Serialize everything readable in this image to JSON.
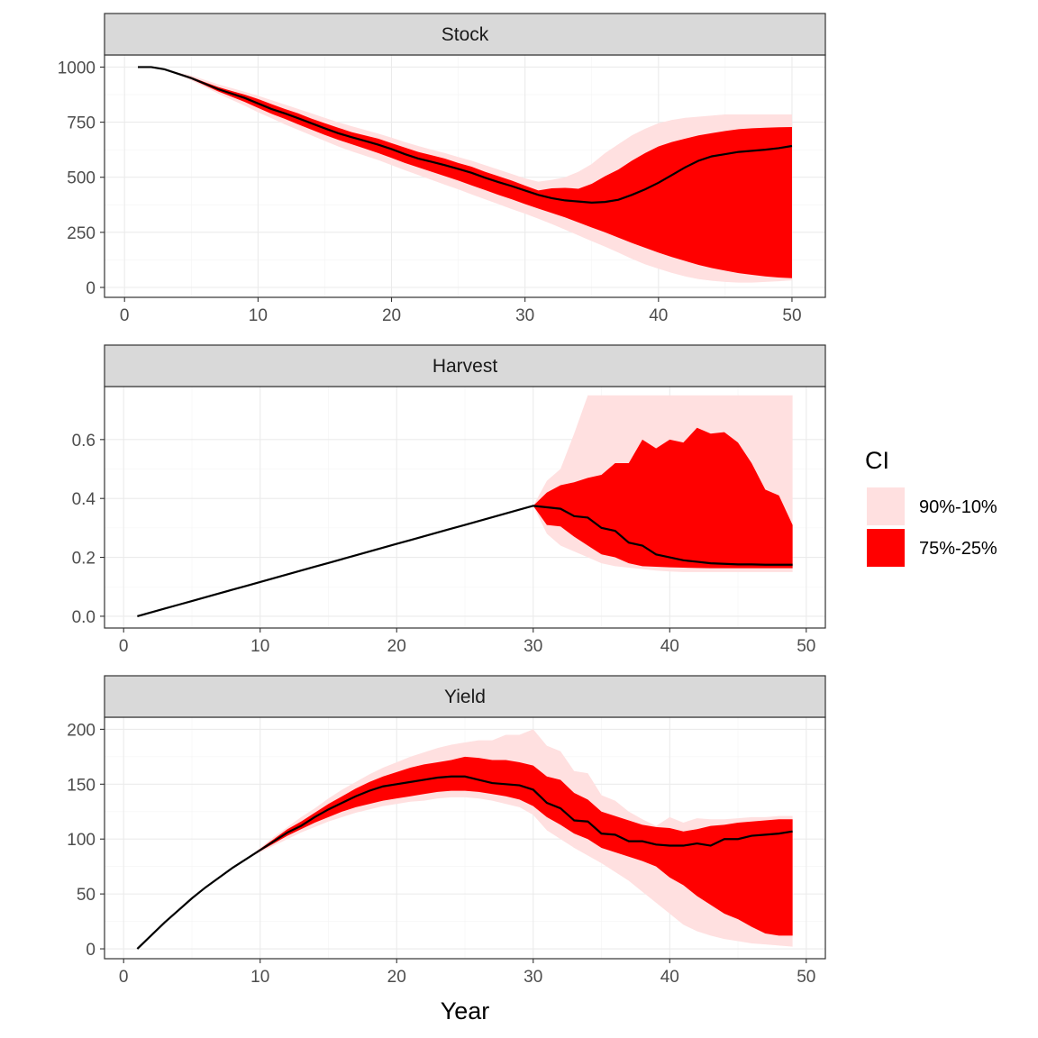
{
  "chart_data": {
    "type": "area",
    "xlabel": "Year",
    "legend": {
      "title": "CI",
      "placement": "right",
      "entries": [
        {
          "label": "90%-10%",
          "color": "#ffe0e0"
        },
        {
          "label": "75%-25%",
          "color": "#ff0000"
        }
      ]
    },
    "median_color": "#000000",
    "panels": [
      {
        "title": "Stock",
        "xlim": [
          -1.5,
          52.5
        ],
        "ylim": [
          -45,
          1055
        ],
        "x_ticks": [
          0,
          10,
          20,
          30,
          40,
          50
        ],
        "y_ticks": [
          0,
          250,
          500,
          750,
          1000
        ],
        "x": [
          1,
          2,
          3,
          4,
          5,
          6,
          7,
          8,
          9,
          10,
          11,
          12,
          13,
          14,
          15,
          16,
          17,
          18,
          19,
          20,
          21,
          22,
          23,
          24,
          25,
          26,
          27,
          28,
          29,
          30,
          31,
          32,
          33,
          34,
          35,
          36,
          37,
          38,
          39,
          40,
          41,
          42,
          43,
          44,
          45,
          46,
          47,
          48,
          49,
          50
        ],
        "median": [
          1000,
          1000,
          990,
          970,
          950,
          925,
          900,
          880,
          860,
          835,
          810,
          790,
          768,
          745,
          722,
          700,
          682,
          665,
          648,
          628,
          605,
          585,
          570,
          555,
          538,
          520,
          498,
          478,
          460,
          440,
          420,
          405,
          395,
          390,
          385,
          388,
          398,
          420,
          445,
          475,
          510,
          545,
          575,
          595,
          605,
          615,
          620,
          625,
          632,
          642
        ],
        "p25": [
          1000,
          1000,
          990,
          968,
          945,
          918,
          890,
          866,
          842,
          815,
          788,
          765,
          740,
          716,
          692,
          670,
          650,
          630,
          610,
          588,
          565,
          545,
          525,
          505,
          485,
          463,
          442,
          420,
          400,
          378,
          358,
          338,
          318,
          295,
          272,
          250,
          226,
          202,
          180,
          158,
          138,
          120,
          102,
          88,
          76,
          65,
          57,
          50,
          45,
          42
        ],
        "p75": [
          1000,
          1000,
          990,
          972,
          955,
          932,
          910,
          892,
          875,
          855,
          832,
          810,
          790,
          766,
          745,
          725,
          705,
          690,
          675,
          655,
          635,
          615,
          600,
          585,
          565,
          548,
          525,
          505,
          485,
          462,
          440,
          450,
          452,
          448,
          470,
          505,
          535,
          575,
          610,
          640,
          660,
          675,
          690,
          700,
          710,
          718,
          722,
          725,
          727,
          728
        ],
        "p10": [
          1000,
          1000,
          990,
          965,
          940,
          910,
          880,
          852,
          825,
          795,
          768,
          740,
          715,
          690,
          665,
          640,
          618,
          598,
          578,
          555,
          532,
          510,
          488,
          466,
          445,
          422,
          400,
          378,
          356,
          335,
          312,
          288,
          262,
          236,
          210,
          185,
          158,
          130,
          105,
          85,
          66,
          50,
          38,
          30,
          25,
          22,
          22,
          25,
          28,
          32
        ],
        "p90": [
          1000,
          1000,
          990,
          975,
          962,
          942,
          922,
          905,
          888,
          870,
          850,
          830,
          810,
          790,
          770,
          750,
          732,
          715,
          698,
          680,
          660,
          642,
          625,
          610,
          592,
          575,
          555,
          535,
          515,
          495,
          480,
          488,
          500,
          525,
          560,
          610,
          650,
          690,
          720,
          745,
          760,
          770,
          775,
          780,
          785,
          785,
          785,
          785,
          785,
          785
        ]
      },
      {
        "title": "Harvest",
        "xlim": [
          -1.4,
          51.4
        ],
        "ylim": [
          -0.04,
          0.78
        ],
        "x_ticks": [
          0,
          10,
          20,
          30,
          40,
          50
        ],
        "y_ticks": [
          0.0,
          0.2,
          0.4,
          0.6
        ],
        "y_tick_labels": [
          "0.0",
          "0.2",
          "0.4",
          "0.6"
        ],
        "x": [
          1,
          2,
          3,
          4,
          5,
          6,
          7,
          8,
          9,
          10,
          11,
          12,
          13,
          14,
          15,
          16,
          17,
          18,
          19,
          20,
          21,
          22,
          23,
          24,
          25,
          26,
          27,
          28,
          29,
          30,
          31,
          32,
          33,
          34,
          35,
          36,
          37,
          38,
          39,
          40,
          41,
          42,
          43,
          44,
          45,
          46,
          47,
          48,
          49
        ],
        "median": [
          0.0,
          0.0129,
          0.0259,
          0.0388,
          0.0517,
          0.0647,
          0.0776,
          0.0905,
          0.1034,
          0.1164,
          0.1293,
          0.1422,
          0.1552,
          0.1681,
          0.181,
          0.194,
          0.2069,
          0.2198,
          0.2328,
          0.2457,
          0.2586,
          0.2716,
          0.2845,
          0.2974,
          0.3103,
          0.3233,
          0.3362,
          0.3491,
          0.3621,
          0.375,
          0.37,
          0.365,
          0.34,
          0.335,
          0.3,
          0.29,
          0.25,
          0.24,
          0.21,
          0.2,
          0.19,
          0.185,
          0.18,
          0.178,
          0.176,
          0.176,
          0.175,
          0.175,
          0.175
        ],
        "p25": [
          0.0,
          0.0129,
          0.0259,
          0.0388,
          0.0517,
          0.0647,
          0.0776,
          0.0905,
          0.1034,
          0.1164,
          0.1293,
          0.1422,
          0.1552,
          0.1681,
          0.181,
          0.194,
          0.2069,
          0.2198,
          0.2328,
          0.2457,
          0.2586,
          0.2716,
          0.2845,
          0.2974,
          0.3103,
          0.3233,
          0.3362,
          0.3491,
          0.3621,
          0.375,
          0.31,
          0.305,
          0.27,
          0.24,
          0.21,
          0.2,
          0.18,
          0.17,
          0.168,
          0.166,
          0.165,
          0.164,
          0.163,
          0.163,
          0.163,
          0.163,
          0.163,
          0.163,
          0.163
        ],
        "p75": [
          0.0,
          0.0129,
          0.0259,
          0.0388,
          0.0517,
          0.0647,
          0.0776,
          0.0905,
          0.1034,
          0.1164,
          0.1293,
          0.1422,
          0.1552,
          0.1681,
          0.181,
          0.194,
          0.2069,
          0.2198,
          0.2328,
          0.2457,
          0.2586,
          0.2716,
          0.2845,
          0.2974,
          0.3103,
          0.3233,
          0.3362,
          0.3491,
          0.3621,
          0.375,
          0.42,
          0.445,
          0.455,
          0.47,
          0.48,
          0.52,
          0.52,
          0.6,
          0.57,
          0.6,
          0.59,
          0.64,
          0.62,
          0.625,
          0.59,
          0.52,
          0.43,
          0.41,
          0.31
        ],
        "p10": [
          0.0,
          0.0129,
          0.0259,
          0.0388,
          0.0517,
          0.0647,
          0.0776,
          0.0905,
          0.1034,
          0.1164,
          0.1293,
          0.1422,
          0.1552,
          0.1681,
          0.181,
          0.194,
          0.2069,
          0.2198,
          0.2328,
          0.2457,
          0.2586,
          0.2716,
          0.2845,
          0.2974,
          0.3103,
          0.3233,
          0.3362,
          0.3491,
          0.3621,
          0.375,
          0.28,
          0.24,
          0.22,
          0.2,
          0.18,
          0.17,
          0.165,
          0.16,
          0.155,
          0.152,
          0.15,
          0.15,
          0.15,
          0.15,
          0.15,
          0.15,
          0.15,
          0.15,
          0.15
        ],
        "p90": [
          0.0,
          0.0129,
          0.0259,
          0.0388,
          0.0517,
          0.0647,
          0.0776,
          0.0905,
          0.1034,
          0.1164,
          0.1293,
          0.1422,
          0.1552,
          0.1681,
          0.181,
          0.194,
          0.2069,
          0.2198,
          0.2328,
          0.2457,
          0.2586,
          0.2716,
          0.2845,
          0.2974,
          0.3103,
          0.3233,
          0.3362,
          0.3491,
          0.3621,
          0.375,
          0.46,
          0.5,
          0.62,
          0.75,
          0.75,
          0.75,
          0.75,
          0.75,
          0.75,
          0.75,
          0.75,
          0.75,
          0.75,
          0.75,
          0.75,
          0.75,
          0.75,
          0.75,
          0.75
        ]
      },
      {
        "title": "Yield",
        "xlim": [
          -1.4,
          51.4
        ],
        "ylim": [
          -9,
          211
        ],
        "x_ticks": [
          0,
          10,
          20,
          30,
          40,
          50
        ],
        "y_ticks": [
          0,
          50,
          100,
          150,
          200
        ],
        "x": [
          1,
          2,
          3,
          4,
          5,
          6,
          7,
          8,
          9,
          10,
          11,
          12,
          13,
          14,
          15,
          16,
          17,
          18,
          19,
          20,
          21,
          22,
          23,
          24,
          25,
          26,
          27,
          28,
          29,
          30,
          31,
          32,
          33,
          34,
          35,
          36,
          37,
          38,
          39,
          40,
          41,
          42,
          43,
          44,
          45,
          46,
          47,
          48,
          49
        ],
        "median": [
          0,
          12,
          24,
          35,
          46,
          56,
          65,
          74,
          82,
          90,
          98,
          106,
          112,
          120,
          127,
          133,
          139,
          144,
          148,
          150,
          152,
          154,
          156,
          157,
          157,
          154,
          151,
          150,
          149,
          145,
          133,
          128,
          117,
          116,
          105,
          104,
          98,
          98,
          95,
          94,
          94,
          96,
          94,
          100,
          100,
          103,
          104,
          105,
          107
        ],
        "p25": [
          0,
          12,
          24,
          35,
          46,
          56,
          65,
          74,
          82,
          89,
          96,
          103,
          109,
          115,
          120,
          125,
          129,
          132,
          135,
          137,
          139,
          141,
          143,
          144,
          144,
          143,
          141,
          139,
          136,
          130,
          120,
          113,
          105,
          100,
          92,
          88,
          84,
          80,
          75,
          65,
          58,
          48,
          40,
          32,
          27,
          20,
          14,
          12,
          12
        ],
        "p75": [
          0,
          12,
          24,
          35,
          46,
          56,
          65,
          74,
          82,
          91,
          100,
          109,
          116,
          124,
          132,
          139,
          146,
          152,
          157,
          161,
          165,
          168,
          170,
          172,
          175,
          174,
          172,
          172,
          170,
          167,
          157,
          154,
          142,
          136,
          125,
          121,
          117,
          113,
          111,
          110,
          107,
          109,
          112,
          113,
          115,
          116,
          117,
          118,
          118
        ],
        "p10": [
          0,
          12,
          24,
          35,
          46,
          56,
          65,
          74,
          82,
          88,
          94,
          100,
          106,
          111,
          116,
          120,
          124,
          127,
          130,
          132,
          134,
          135,
          137,
          138,
          138,
          137,
          135,
          132,
          129,
          122,
          108,
          100,
          92,
          85,
          78,
          70,
          62,
          52,
          42,
          32,
          22,
          16,
          12,
          9,
          7,
          5,
          4,
          3,
          2
        ],
        "p90": [
          0,
          12,
          24,
          35,
          46,
          56,
          65,
          74,
          82,
          92,
          102,
          111,
          120,
          128,
          137,
          145,
          152,
          159,
          165,
          170,
          175,
          179,
          183,
          186,
          188,
          190,
          190,
          195,
          195,
          200,
          185,
          180,
          162,
          160,
          140,
          135,
          125,
          118,
          112,
          120,
          115,
          119,
          118,
          118,
          119,
          120,
          120,
          121,
          121
        ]
      }
    ]
  }
}
